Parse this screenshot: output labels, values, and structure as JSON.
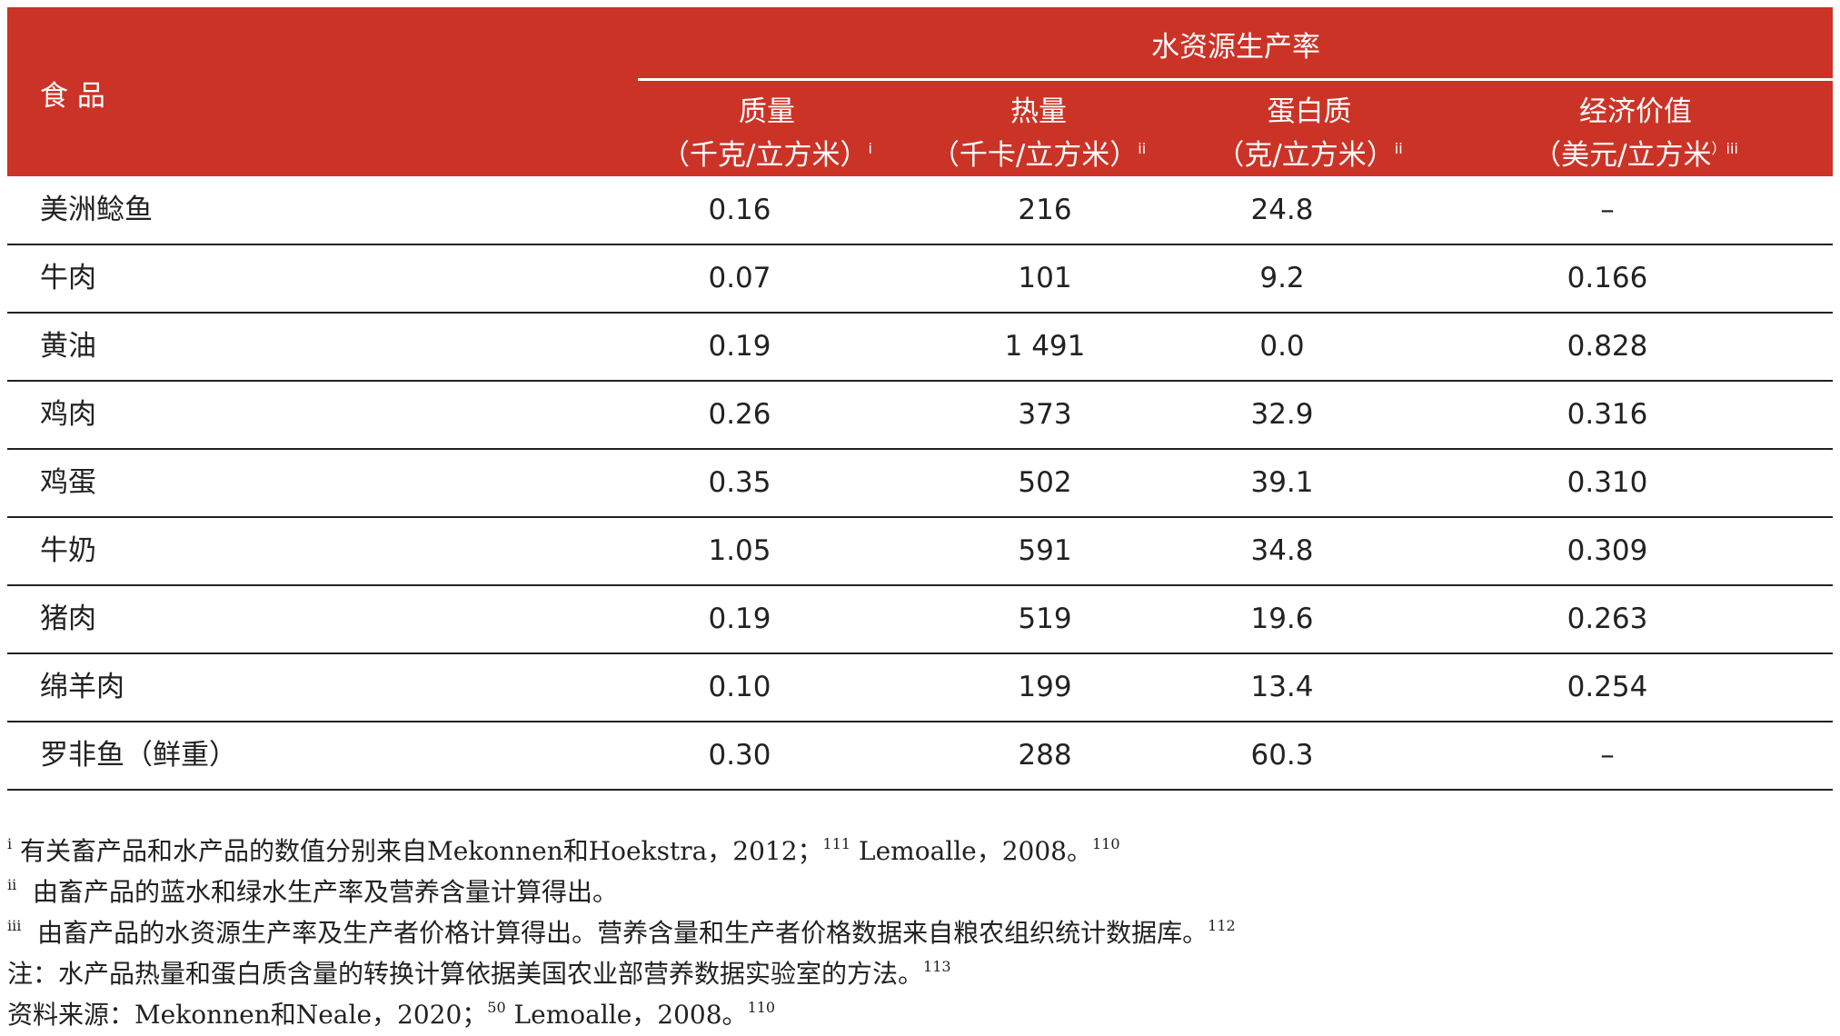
{
  "table": {
    "header": {
      "food": "食 品",
      "group": "水资源生产率",
      "columns": [
        {
          "name": "质量",
          "unit": "（千克/立方米）",
          "sup": "i"
        },
        {
          "name": "热量",
          "unit": "（千卡/立方米）",
          "sup": "ii"
        },
        {
          "name": "蛋白质",
          "unit": "（克/立方米）",
          "sup": "ii"
        },
        {
          "name": "经济价值",
          "unit": "（美元/立方米",
          "sup": "）iii"
        }
      ]
    },
    "rows": [
      [
        "美洲鲶鱼",
        "0.16",
        "216",
        "24.8",
        "–"
      ],
      [
        "牛肉",
        "0.07",
        "101",
        "9.2",
        "0.166"
      ],
      [
        "黄油",
        "0.19",
        "1 491",
        "0.0",
        "0.828"
      ],
      [
        "鸡肉",
        "0.26",
        "373",
        "32.9",
        "0.316"
      ],
      [
        "鸡蛋",
        "0.35",
        "502",
        "39.1",
        "0.310"
      ],
      [
        "牛奶",
        "1.05",
        "591",
        "34.8",
        "0.309"
      ],
      [
        "猪肉",
        "0.19",
        "519",
        "19.6",
        "0.263"
      ],
      [
        "绵羊肉",
        "0.10",
        "199",
        "13.4",
        "0.254"
      ],
      [
        "罗非鱼（鲜重）",
        "0.30",
        "288",
        "60.3",
        "–"
      ]
    ]
  },
  "notes": [
    [
      {
        "sup": "i"
      },
      {
        "text": " 有关畜产品和水产品的数值分别来自Mekonnen和Hoekstra，2012；"
      },
      {
        "sup": "111"
      },
      {
        "text": " Lemoalle，2008。"
      },
      {
        "sup": "110"
      }
    ],
    [
      {
        "sup": "ii"
      },
      {
        "text": "  由畜产品的蓝水和绿水生产率及营养含量计算得出。"
      }
    ],
    [
      {
        "sup": "iii"
      },
      {
        "text": "  由畜产品的水资源生产率及生产者价格计算得出。营养含量和生产者价格数据来自粮农组织统计数据库。"
      },
      {
        "sup": "112"
      }
    ],
    [
      {
        "text": "注：水产品热量和蛋白质含量的转换计算依据美国农业部营养数据实验室的方法。"
      },
      {
        "sup": "113"
      }
    ],
    [
      {
        "text": "资料来源：Mekonnen和Neale，2020；"
      },
      {
        "sup": "50"
      },
      {
        "text": " Lemoalle，2008。"
      },
      {
        "sup": "110"
      }
    ]
  ]
}
